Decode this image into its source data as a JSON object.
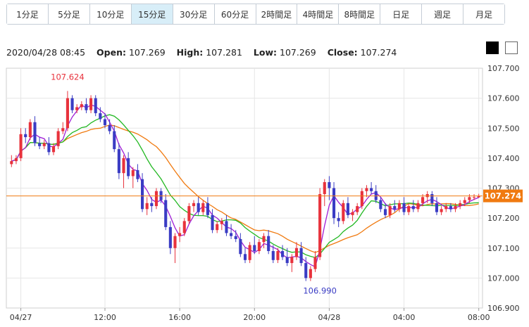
{
  "timeframe_tabs": [
    {
      "label": "1分足",
      "active": false
    },
    {
      "label": "5分足",
      "active": false
    },
    {
      "label": "10分足",
      "active": false
    },
    {
      "label": "15分足",
      "active": true
    },
    {
      "label": "30分足",
      "active": false
    },
    {
      "label": "60分足",
      "active": false
    },
    {
      "label": "2時間足",
      "active": false
    },
    {
      "label": "4時間足",
      "active": false
    },
    {
      "label": "8時間足",
      "active": false
    },
    {
      "label": "日足",
      "active": false
    },
    {
      "label": "週足",
      "active": false
    },
    {
      "label": "月足",
      "active": false
    }
  ],
  "ohlc": {
    "datetime": "2020/04/28 08:45",
    "open_label": "Open:",
    "open": "107.269",
    "high_label": "High:",
    "high": "107.281",
    "low_label": "Low:",
    "low": "107.269",
    "close_label": "Close:",
    "close": "107.274"
  },
  "theme_buttons": [
    {
      "name": "dark",
      "color": "#000000"
    },
    {
      "name": "light",
      "color": "#ffffff"
    }
  ],
  "chart_data": {
    "type": "candlestick",
    "ylim": [
      106.9,
      107.7
    ],
    "y_ticks": [
      "107.700",
      "107.600",
      "107.500",
      "107.400",
      "107.300",
      "107.200",
      "107.100",
      "107.000",
      "106.900"
    ],
    "x_ticks": [
      {
        "label": "04/27",
        "i": 2
      },
      {
        "label": "12:00",
        "i": 20
      },
      {
        "label": "16:00",
        "i": 36
      },
      {
        "label": "20:00",
        "i": 52
      },
      {
        "label": "04/28",
        "i": 68
      },
      {
        "label": "04:00",
        "i": 84
      },
      {
        "label": "08:00",
        "i": 100
      }
    ],
    "last_price": "107.274",
    "annotations": [
      {
        "text": "107.624",
        "i": 12,
        "value": 107.624
      },
      {
        "text": "106.990",
        "i": 66,
        "value": 106.99
      }
    ],
    "colors": {
      "up": "#e8323c",
      "down": "#3a3cc4",
      "ma_short": "#a01ed6",
      "ma_mid": "#22b822",
      "ma_long": "#f07a10",
      "price_line": "#f07a10",
      "grid": "#e6e6e6"
    },
    "candles": [
      [
        107.38,
        107.41,
        107.37,
        107.39
      ],
      [
        107.39,
        107.41,
        107.38,
        107.4
      ],
      [
        107.4,
        107.5,
        107.39,
        107.48
      ],
      [
        107.48,
        107.5,
        107.45,
        107.47
      ],
      [
        107.47,
        107.53,
        107.46,
        107.52
      ],
      [
        107.52,
        107.54,
        107.44,
        107.45
      ],
      [
        107.45,
        107.47,
        107.43,
        107.44
      ],
      [
        107.44,
        107.46,
        107.43,
        107.45
      ],
      [
        107.45,
        107.47,
        107.41,
        107.42
      ],
      [
        107.42,
        107.45,
        107.41,
        107.44
      ],
      [
        107.44,
        107.5,
        107.43,
        107.49
      ],
      [
        107.49,
        107.52,
        107.48,
        107.5
      ],
      [
        107.5,
        107.624,
        107.49,
        107.6
      ],
      [
        107.6,
        107.61,
        107.55,
        107.56
      ],
      [
        107.56,
        107.58,
        107.55,
        107.57
      ],
      [
        107.57,
        107.59,
        107.56,
        107.58
      ],
      [
        107.58,
        107.6,
        107.55,
        107.56
      ],
      [
        107.56,
        107.61,
        107.55,
        107.6
      ],
      [
        107.6,
        107.61,
        107.54,
        107.55
      ],
      [
        107.55,
        107.57,
        107.52,
        107.53
      ],
      [
        107.53,
        107.55,
        107.5,
        107.51
      ],
      [
        107.51,
        107.53,
        107.48,
        107.49
      ],
      [
        107.49,
        107.51,
        107.42,
        107.43
      ],
      [
        107.43,
        107.45,
        107.33,
        107.35
      ],
      [
        107.35,
        107.41,
        107.3,
        107.4
      ],
      [
        107.4,
        107.42,
        107.33,
        107.34
      ],
      [
        107.34,
        107.37,
        107.3,
        107.36
      ],
      [
        107.36,
        107.38,
        107.32,
        107.33
      ],
      [
        107.33,
        107.35,
        107.22,
        107.23
      ],
      [
        107.23,
        107.27,
        107.21,
        107.25
      ],
      [
        107.25,
        107.27,
        107.22,
        107.24
      ],
      [
        107.24,
        107.3,
        107.23,
        107.29
      ],
      [
        107.29,
        107.3,
        107.25,
        107.26
      ],
      [
        107.26,
        107.28,
        107.16,
        107.17
      ],
      [
        107.17,
        107.19,
        107.08,
        107.1
      ],
      [
        107.1,
        107.15,
        107.05,
        107.14
      ],
      [
        107.14,
        107.17,
        107.12,
        107.15
      ],
      [
        107.15,
        107.2,
        107.14,
        107.19
      ],
      [
        107.19,
        107.25,
        107.18,
        107.24
      ],
      [
        107.24,
        107.26,
        107.22,
        107.25
      ],
      [
        107.25,
        107.27,
        107.21,
        107.22
      ],
      [
        107.22,
        107.26,
        107.21,
        107.25
      ],
      [
        107.25,
        107.27,
        107.2,
        107.21
      ],
      [
        107.21,
        107.23,
        107.15,
        107.16
      ],
      [
        107.16,
        107.19,
        107.15,
        107.18
      ],
      [
        107.18,
        107.2,
        107.16,
        107.19
      ],
      [
        107.19,
        107.21,
        107.14,
        107.15
      ],
      [
        107.15,
        107.18,
        107.13,
        107.14
      ],
      [
        107.14,
        107.16,
        107.12,
        107.13
      ],
      [
        107.13,
        107.15,
        107.07,
        107.08
      ],
      [
        107.08,
        107.1,
        107.05,
        107.06
      ],
      [
        107.06,
        107.12,
        107.05,
        107.11
      ],
      [
        107.11,
        107.14,
        107.08,
        107.09
      ],
      [
        107.09,
        107.13,
        107.08,
        107.12
      ],
      [
        107.12,
        107.15,
        107.1,
        107.14
      ],
      [
        107.14,
        107.16,
        107.08,
        107.09
      ],
      [
        107.09,
        107.11,
        107.05,
        107.06
      ],
      [
        107.06,
        107.1,
        107.05,
        107.09
      ],
      [
        107.09,
        107.11,
        107.06,
        107.07
      ],
      [
        107.07,
        107.1,
        107.04,
        107.05
      ],
      [
        107.05,
        107.08,
        107.02,
        107.07
      ],
      [
        107.07,
        107.12,
        107.06,
        107.1
      ],
      [
        107.1,
        107.12,
        107.04,
        107.05
      ],
      [
        107.05,
        107.07,
        106.99,
        107.0
      ],
      [
        107.0,
        107.04,
        106.99,
        107.03
      ],
      [
        107.03,
        107.09,
        107.02,
        107.07
      ],
      [
        107.07,
        107.3,
        107.06,
        107.28
      ],
      [
        107.28,
        107.33,
        107.24,
        107.32
      ],
      [
        107.32,
        107.34,
        107.26,
        107.3
      ],
      [
        107.3,
        107.32,
        107.18,
        107.2
      ],
      [
        107.2,
        107.22,
        107.17,
        107.19
      ],
      [
        107.19,
        107.26,
        107.18,
        107.25
      ],
      [
        107.25,
        107.27,
        107.2,
        107.21
      ],
      [
        107.21,
        107.23,
        107.19,
        107.22
      ],
      [
        107.22,
        107.25,
        107.21,
        107.24
      ],
      [
        107.24,
        107.3,
        107.23,
        107.29
      ],
      [
        107.29,
        107.31,
        107.27,
        107.3
      ],
      [
        107.3,
        107.32,
        107.28,
        107.29
      ],
      [
        107.29,
        107.31,
        107.25,
        107.26
      ],
      [
        107.26,
        107.27,
        107.22,
        107.23
      ],
      [
        107.23,
        107.25,
        107.2,
        107.21
      ],
      [
        107.21,
        107.25,
        107.2,
        107.24
      ],
      [
        107.24,
        107.26,
        107.22,
        107.23
      ],
      [
        107.23,
        107.26,
        107.22,
        107.25
      ],
      [
        107.25,
        107.27,
        107.21,
        107.22
      ],
      [
        107.22,
        107.25,
        107.21,
        107.24
      ],
      [
        107.24,
        107.26,
        107.22,
        107.23
      ],
      [
        107.23,
        107.26,
        107.22,
        107.25
      ],
      [
        107.25,
        107.28,
        107.24,
        107.27
      ],
      [
        107.27,
        107.29,
        107.25,
        107.28
      ],
      [
        107.28,
        107.29,
        107.24,
        107.25
      ],
      [
        107.25,
        107.27,
        107.21,
        107.22
      ],
      [
        107.22,
        107.24,
        107.21,
        107.23
      ],
      [
        107.23,
        107.25,
        107.22,
        107.24
      ],
      [
        107.24,
        107.25,
        107.22,
        107.23
      ],
      [
        107.23,
        107.25,
        107.22,
        107.24
      ],
      [
        107.24,
        107.26,
        107.23,
        107.25
      ],
      [
        107.25,
        107.27,
        107.24,
        107.26
      ],
      [
        107.26,
        107.28,
        107.25,
        107.27
      ],
      [
        107.27,
        107.28,
        107.26,
        107.27
      ],
      [
        107.269,
        107.281,
        107.269,
        107.274
      ]
    ]
  }
}
